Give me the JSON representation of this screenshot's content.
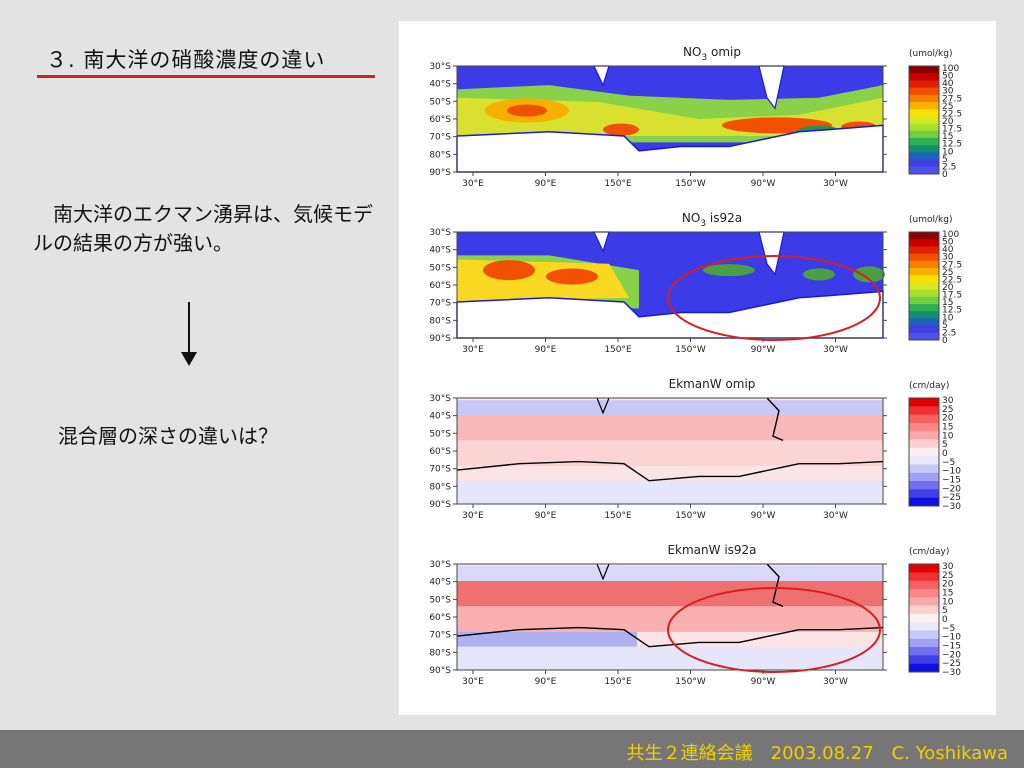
{
  "slide": {
    "title": "３. 南大洋の硝酸濃度の違い",
    "paragraph1": "　南大洋のエクマン湧昇は、気候モデルの結果の方が強い。",
    "paragraph2": "混合層の深さの違いは？",
    "footer": "共生２連絡会議　2003.08.27　C. Yoshikawa"
  },
  "colors": {
    "title_underline": "#d62020",
    "footer_bg": "#767676",
    "footer_text": "#f0d000",
    "ellipse": "#d62020",
    "land_outline": "#1a1ad8",
    "coast_black": "#000000"
  },
  "chart_data": [
    {
      "type": "heatmap",
      "title_main": "NO",
      "title_sub": "3",
      "title_tail": " omip",
      "unit": "(umol/kg)",
      "y_ticks": [
        "30°S",
        "40°S",
        "50°S",
        "60°S",
        "70°S",
        "80°S",
        "90°S"
      ],
      "x_ticks": [
        "30°E",
        "90°E",
        "150°E",
        "150°W",
        "90°W",
        "30°W"
      ],
      "colorbar_labels": [
        "100",
        "50",
        "40",
        "30",
        "27.5",
        "25",
        "22.5",
        "20",
        "17.5",
        "15",
        "12.5",
        "10",
        "5",
        "2.5",
        "0"
      ],
      "colorbar_colors": [
        "#8b0000",
        "#c80000",
        "#e02000",
        "#f05000",
        "#f88000",
        "#f8b000",
        "#f8e000",
        "#d8e820",
        "#a8e030",
        "#70d040",
        "#30b050",
        "#109070",
        "#2060c0",
        "#4040e0",
        "#5050f0"
      ]
    },
    {
      "type": "heatmap",
      "title_main": "NO",
      "title_sub": "3",
      "title_tail": " is92a",
      "unit": "(umol/kg)",
      "y_ticks": [
        "30°S",
        "40°S",
        "50°S",
        "60°S",
        "70°S",
        "80°S",
        "90°S"
      ],
      "x_ticks": [
        "30°E",
        "90°E",
        "150°E",
        "150°W",
        "90°W",
        "30°W"
      ],
      "colorbar_labels": [
        "100",
        "50",
        "40",
        "30",
        "27.5",
        "25",
        "22.5",
        "20",
        "17.5",
        "15",
        "12.5",
        "10",
        "5",
        "2.5",
        "0"
      ],
      "colorbar_colors": [
        "#8b0000",
        "#c80000",
        "#e02000",
        "#f05000",
        "#f88000",
        "#f8b000",
        "#f8e000",
        "#d8e820",
        "#a8e030",
        "#70d040",
        "#30b050",
        "#109070",
        "#2060c0",
        "#4040e0",
        "#5050f0"
      ]
    },
    {
      "type": "heatmap",
      "title_main": "EkmanW omip",
      "title_sub": "",
      "title_tail": "",
      "unit": "(cm/day)",
      "y_ticks": [
        "30°S",
        "40°S",
        "50°S",
        "60°S",
        "70°S",
        "80°S",
        "90°S"
      ],
      "x_ticks": [
        "30°E",
        "90°E",
        "150°E",
        "150°W",
        "90°W",
        "30°W"
      ],
      "colorbar_labels": [
        "30",
        "25",
        "20",
        "15",
        "10",
        "5",
        "0",
        "−5",
        "−10",
        "−15",
        "−20",
        "−25",
        "−30"
      ],
      "colorbar_colors": [
        "#e00000",
        "#f03030",
        "#f86060",
        "#f88888",
        "#f8a8a8",
        "#fcd0d0",
        "#fff0f0",
        "#e8e8fc",
        "#c8c8fa",
        "#a0a0f4",
        "#7070ee",
        "#4040e8",
        "#1010e0"
      ]
    },
    {
      "type": "heatmap",
      "title_main": "EkmanW is92a",
      "title_sub": "",
      "title_tail": "",
      "unit": "(cm/day)",
      "y_ticks": [
        "30°S",
        "40°S",
        "50°S",
        "60°S",
        "70°S",
        "80°S",
        "90°S"
      ],
      "x_ticks": [
        "30°E",
        "90°E",
        "150°E",
        "150°W",
        "90°W",
        "30°W"
      ],
      "colorbar_labels": [
        "30",
        "25",
        "20",
        "15",
        "10",
        "5",
        "0",
        "−5",
        "−10",
        "−15",
        "−20",
        "−25",
        "−30"
      ],
      "colorbar_colors": [
        "#e00000",
        "#f03030",
        "#f86060",
        "#f88888",
        "#f8a8a8",
        "#fcd0d0",
        "#fff0f0",
        "#e8e8fc",
        "#c8c8fa",
        "#a0a0f4",
        "#7070ee",
        "#4040e8",
        "#1010e0"
      ]
    }
  ]
}
